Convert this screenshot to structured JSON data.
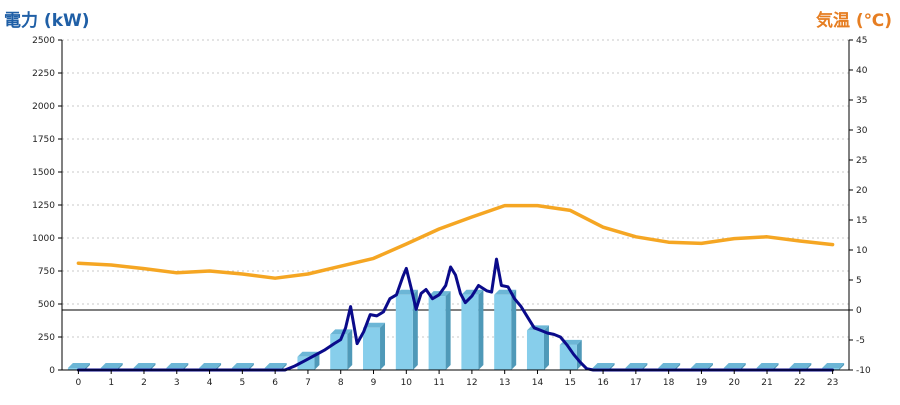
{
  "chart_data": {
    "type": "bar+line",
    "left_axis": {
      "title": "電力 (kW)",
      "title_color": "#1f5fa6",
      "range": [
        0,
        2500
      ],
      "ticks": [
        0,
        250,
        500,
        750,
        1000,
        1250,
        1500,
        1750,
        2000,
        2250,
        2500
      ]
    },
    "right_axis": {
      "title": "気温 (℃)",
      "title_color": "#e67e22",
      "range": [
        -10,
        45
      ],
      "ticks": [
        -10,
        -5,
        0,
        5,
        10,
        15,
        20,
        25,
        30,
        35,
        40,
        45
      ]
    },
    "x": {
      "categories": [
        "0",
        "1",
        "2",
        "3",
        "4",
        "5",
        "6",
        "7",
        "8",
        "9",
        "10",
        "11",
        "12",
        "13",
        "14",
        "15",
        "16",
        "17",
        "18",
        "19",
        "20",
        "21",
        "22",
        "23"
      ]
    },
    "grid": true,
    "reference_line_temp": 0,
    "series": [
      {
        "kind": "bar",
        "axis": "left",
        "color": "#87ceeb",
        "values": [
          0,
          0,
          0,
          0,
          0,
          0,
          0,
          100,
          270,
          320,
          570,
          560,
          570,
          570,
          300,
          190,
          0,
          0,
          0,
          0,
          0,
          0,
          0,
          0
        ]
      },
      {
        "kind": "line",
        "axis": "left",
        "color": "#0a0a8a",
        "points": [
          [
            0,
            0
          ],
          [
            1,
            0
          ],
          [
            2,
            0
          ],
          [
            3,
            0
          ],
          [
            4,
            0
          ],
          [
            5,
            0
          ],
          [
            6,
            0
          ],
          [
            6.3,
            0
          ],
          [
            6.6,
            30
          ],
          [
            6.9,
            70
          ],
          [
            7.2,
            110
          ],
          [
            7.5,
            150
          ],
          [
            7.8,
            200
          ],
          [
            8.0,
            230
          ],
          [
            8.15,
            320
          ],
          [
            8.3,
            480
          ],
          [
            8.5,
            200
          ],
          [
            8.7,
            290
          ],
          [
            8.9,
            420
          ],
          [
            9.1,
            410
          ],
          [
            9.3,
            440
          ],
          [
            9.5,
            540
          ],
          [
            9.7,
            570
          ],
          [
            9.9,
            710
          ],
          [
            10.0,
            770
          ],
          [
            10.15,
            620
          ],
          [
            10.3,
            460
          ],
          [
            10.45,
            580
          ],
          [
            10.6,
            610
          ],
          [
            10.8,
            540
          ],
          [
            11.0,
            570
          ],
          [
            11.2,
            640
          ],
          [
            11.35,
            780
          ],
          [
            11.5,
            720
          ],
          [
            11.65,
            580
          ],
          [
            11.8,
            510
          ],
          [
            12.0,
            560
          ],
          [
            12.2,
            640
          ],
          [
            12.45,
            600
          ],
          [
            12.6,
            590
          ],
          [
            12.75,
            840
          ],
          [
            12.9,
            640
          ],
          [
            13.1,
            630
          ],
          [
            13.3,
            540
          ],
          [
            13.5,
            480
          ],
          [
            13.7,
            400
          ],
          [
            13.9,
            320
          ],
          [
            14.1,
            300
          ],
          [
            14.3,
            280
          ],
          [
            14.5,
            270
          ],
          [
            14.7,
            250
          ],
          [
            14.9,
            190
          ],
          [
            15.1,
            120
          ],
          [
            15.3,
            60
          ],
          [
            15.5,
            10
          ],
          [
            15.7,
            0
          ],
          [
            16,
            0
          ],
          [
            17,
            0
          ],
          [
            18,
            0
          ],
          [
            19,
            0
          ],
          [
            20,
            0
          ],
          [
            21,
            0
          ],
          [
            22,
            0
          ],
          [
            23,
            0
          ]
        ]
      },
      {
        "kind": "line",
        "axis": "right",
        "color": "#f5a623",
        "points": [
          [
            0,
            7.8
          ],
          [
            1,
            7.5
          ],
          [
            2,
            6.9
          ],
          [
            3,
            6.2
          ],
          [
            4,
            6.5
          ],
          [
            5,
            6.0
          ],
          [
            6,
            5.3
          ],
          [
            7,
            6.0
          ],
          [
            8,
            7.3
          ],
          [
            9,
            8.6
          ],
          [
            10,
            11.0
          ],
          [
            11,
            13.5
          ],
          [
            12,
            15.5
          ],
          [
            13,
            17.4
          ],
          [
            14,
            17.4
          ],
          [
            15,
            16.6
          ],
          [
            16,
            13.8
          ],
          [
            17,
            12.2
          ],
          [
            18,
            11.3
          ],
          [
            19,
            11.1
          ],
          [
            20,
            11.9
          ],
          [
            21,
            12.2
          ],
          [
            22,
            11.5
          ],
          [
            23,
            10.9
          ]
        ]
      }
    ]
  }
}
